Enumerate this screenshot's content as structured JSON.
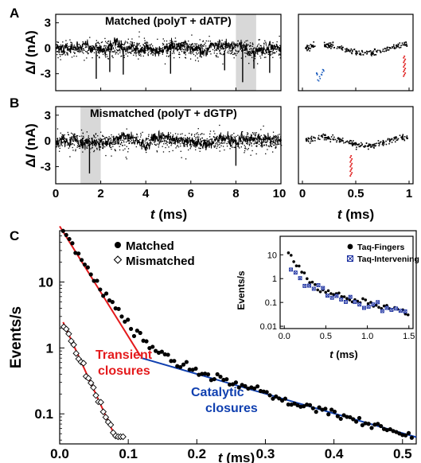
{
  "panels": {
    "a": {
      "letter": "A",
      "title": "Matched (polyT + dATP)",
      "ylabel_prefix": "Δ",
      "ylabel_italic": "I",
      "ylabel_suffix": " (nA)"
    },
    "b": {
      "letter": "B",
      "title": "Mismatched (polyT + dGTP)",
      "ylabel_prefix": "Δ",
      "ylabel_italic": "I",
      "ylabel_suffix": " (nA)"
    },
    "c": {
      "letter": "C"
    }
  },
  "colors": {
    "trace": "#000000",
    "highlight": "#d8d8d8",
    "zoom_blue": "#1f5fbf",
    "zoom_red": "#e02020",
    "fit_red": "#e41a1c",
    "fit_blue": "#1040b0",
    "inset_blue": "#1a2fa0"
  },
  "chart_data": [
    {
      "id": "A-main",
      "type": "line",
      "xlim": [
        0,
        10
      ],
      "ylim": [
        -5,
        4
      ],
      "yticks": [
        3,
        0,
        -3
      ],
      "xticks": [
        0,
        2,
        4,
        6,
        8,
        10
      ],
      "highlight": [
        8.0,
        8.9
      ],
      "spikes": [
        {
          "x": 1.8,
          "y": -3.6
        },
        {
          "x": 2.4,
          "y": -2.8
        },
        {
          "x": 3.0,
          "y": -3.1
        },
        {
          "x": 5.1,
          "y": -3.0
        },
        {
          "x": 7.5,
          "y": -2.6
        },
        {
          "x": 8.3,
          "y": -4.0
        },
        {
          "x": 8.8,
          "y": -2.4
        },
        {
          "x": 9.5,
          "y": -2.9
        }
      ]
    },
    {
      "id": "A-zoom",
      "type": "scatter",
      "xlim": [
        0,
        1
      ],
      "ylim": [
        -5,
        4
      ],
      "xticks": [
        0,
        0.5,
        1
      ],
      "blue_dip": {
        "x": [
          0.12,
          0.2
        ],
        "y_min": -3.6
      },
      "red_dip": {
        "x": 0.95,
        "y_min": -3.2
      }
    },
    {
      "id": "B-main",
      "type": "line",
      "xlim": [
        0,
        10
      ],
      "ylim": [
        -5,
        4
      ],
      "yticks": [
        3,
        0,
        -3
      ],
      "xticks": [
        0,
        2,
        4,
        6,
        8,
        10
      ],
      "xticklabels": [
        "0",
        "2",
        "4",
        "6",
        "8",
        "10"
      ],
      "xlabel_italic": "t",
      "xlabel_suffix": " (ms)",
      "highlight": [
        1.1,
        2.0
      ],
      "spikes": [
        {
          "x": 1.5,
          "y": -3.8
        },
        {
          "x": 8.0,
          "y": -2.9
        }
      ]
    },
    {
      "id": "B-zoom",
      "type": "scatter",
      "xlim": [
        0,
        1
      ],
      "ylim": [
        -5,
        4
      ],
      "xticks": [
        0,
        0.5,
        1
      ],
      "xticklabels": [
        "0",
        "0.5",
        "1"
      ],
      "xlabel_italic": "t",
      "xlabel_suffix": " (ms)",
      "red_dip": {
        "x": 0.45,
        "y_min": -4.0
      }
    },
    {
      "id": "C-main",
      "type": "scatter",
      "log_y": true,
      "xlim": [
        0,
        0.52
      ],
      "ylim": [
        0.035,
        60
      ],
      "xticks": [
        0.0,
        0.1,
        0.2,
        0.3,
        0.4,
        0.5
      ],
      "xticklabels": [
        "0.0",
        "0.1",
        "0.2",
        "0.3",
        "0.4",
        "0.5"
      ],
      "yticks": [
        0.1,
        1,
        10
      ],
      "yticklabels": [
        "0.1",
        "1",
        "10"
      ],
      "xlabel_italic": "t",
      "xlabel_suffix": " (ms)",
      "ylabel": "Events/s",
      "series": [
        {
          "name": "Matched",
          "marker": "filled-circle",
          "a1": 70,
          "t1": 0.026,
          "a2": 1.6,
          "t2": 0.145
        },
        {
          "name": "Mismatched",
          "marker": "open-diamond",
          "a1": 3.2,
          "t1": 0.019,
          "x_end": 0.095
        }
      ],
      "fits": [
        {
          "name": "Transient closures",
          "color": "#e41a1c",
          "x": [
            0.0,
            0.118
          ],
          "a": 70,
          "t": 0.026
        },
        {
          "name": "Transient closures",
          "color": "#e41a1c",
          "x": [
            0.005,
            0.082
          ],
          "a": 3.2,
          "t": 0.019
        },
        {
          "name": "Catalytic closures",
          "color": "#1040b0",
          "x": [
            0.118,
            0.52
          ],
          "a": 1.6,
          "t": 0.145
        }
      ],
      "annotations": [
        {
          "text": "Transient",
          "color": "#e41a1c"
        },
        {
          "text": "closures",
          "color": "#e41a1c"
        },
        {
          "text": "Catalytic",
          "color": "#1040b0"
        },
        {
          "text": "closures",
          "color": "#1040b0"
        }
      ]
    },
    {
      "id": "C-inset",
      "type": "scatter",
      "log_y": true,
      "xlim": [
        -0.05,
        1.55
      ],
      "ylim": [
        0.008,
        60
      ],
      "xticks": [
        0.0,
        0.5,
        1.0,
        1.5
      ],
      "xticklabels": [
        "0.0",
        "0.5",
        "1.0",
        "1.5"
      ],
      "yticks": [
        0.01,
        0.1,
        1,
        10
      ],
      "yticklabels": [
        "0.01",
        "0.1",
        "1",
        "10"
      ],
      "xlabel_italic": "t",
      "xlabel_suffix": " (ms)",
      "ylabel": "Events/s",
      "series": [
        {
          "name": "Taq-Fingers",
          "marker": "filled-circle"
        },
        {
          "name": "Taq-Intervening",
          "marker": "crossed-square"
        }
      ]
    }
  ]
}
